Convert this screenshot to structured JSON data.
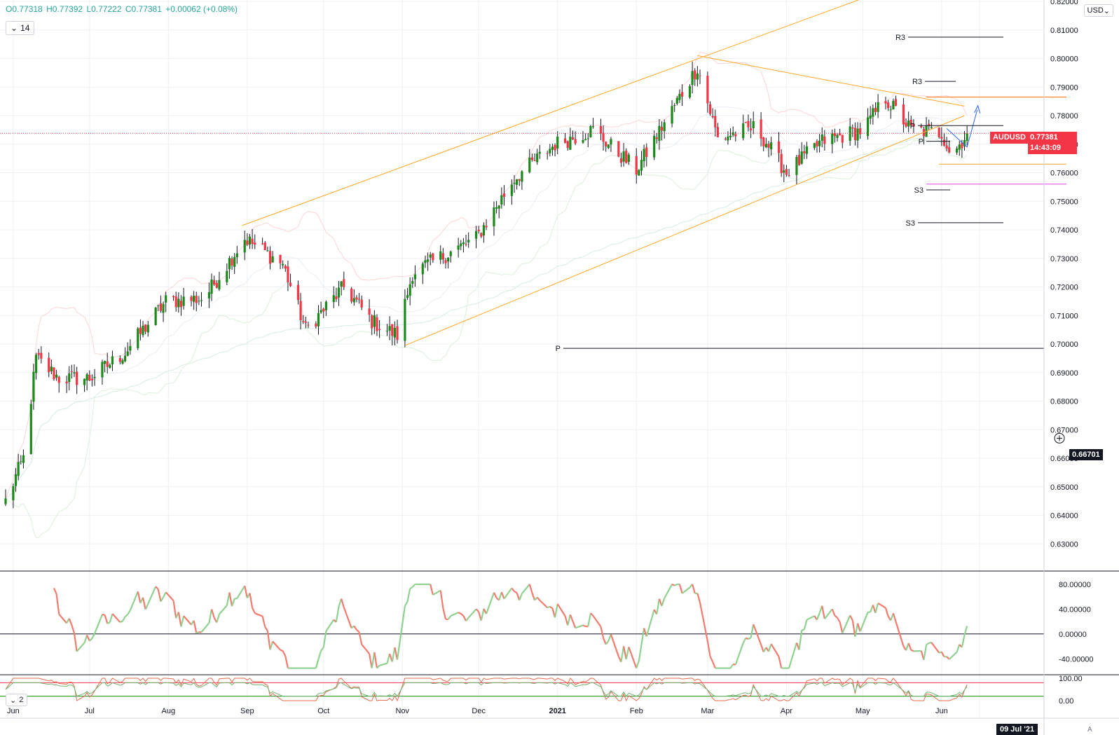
{
  "header": {
    "open": "O0.77318",
    "high": "H0.77392",
    "low": "L0.77222",
    "close": "C0.77381",
    "change": "+0.00062 (+0.08%)",
    "length_label": "14",
    "currency": "USD",
    "indicator2_label": "2"
  },
  "price_tag": {
    "symbol": "AUDUSD",
    "price": "0.77381",
    "countdown": "14:43:09"
  },
  "crosshair_price": "0.66701",
  "crosshair_date": "09 Jul '21",
  "auto_label": "A",
  "colors": {
    "up": "#1b8a1b",
    "down": "#f23645",
    "osc_up": "#8fd18f",
    "osc_down": "#f47a6e",
    "channel": "#ffa726"
  },
  "chart_data": {
    "type": "candlestick",
    "x_axis_labels": [
      "Jun",
      "Jul",
      "Aug",
      "Sep",
      "Oct",
      "Nov",
      "Dec",
      "2021",
      "Feb",
      "Mar",
      "Apr",
      "May",
      "Jun"
    ],
    "ylim": [
      0.62,
      0.82
    ],
    "y_ticks": [
      "0.82000",
      "0.81000",
      "0.80000",
      "0.79000",
      "0.78000",
      "0.77000",
      "0.76000",
      "0.75000",
      "0.74000",
      "0.73000",
      "0.72000",
      "0.71000",
      "0.70000",
      "0.69000",
      "0.68000",
      "0.67000",
      "0.66000",
      "0.65000",
      "0.64000",
      "0.63000"
    ],
    "close_path": [
      {
        "date": "2020-05-29",
        "close": 0.645
      },
      {
        "date": "2020-06-05",
        "close": 0.66
      },
      {
        "date": "2020-06-10",
        "close": 0.695
      },
      {
        "date": "2020-06-19",
        "close": 0.688
      },
      {
        "date": "2020-07-01",
        "close": 0.688
      },
      {
        "date": "2020-07-15",
        "close": 0.697
      },
      {
        "date": "2020-07-31",
        "close": 0.715
      },
      {
        "date": "2020-08-15",
        "close": 0.716
      },
      {
        "date": "2020-08-31",
        "close": 0.737
      },
      {
        "date": "2020-09-15",
        "close": 0.728
      },
      {
        "date": "2020-09-24",
        "close": 0.705
      },
      {
        "date": "2020-10-09",
        "close": 0.72
      },
      {
        "date": "2020-10-20",
        "close": 0.708
      },
      {
        "date": "2020-10-30",
        "close": 0.703
      },
      {
        "date": "2020-11-05",
        "close": 0.725
      },
      {
        "date": "2020-11-30",
        "close": 0.737
      },
      {
        "date": "2020-12-15",
        "close": 0.758
      },
      {
        "date": "2020-12-31",
        "close": 0.77
      },
      {
        "date": "2021-01-15",
        "close": 0.775
      },
      {
        "date": "2021-02-01",
        "close": 0.761
      },
      {
        "date": "2021-02-25",
        "close": 0.797
      },
      {
        "date": "2021-03-05",
        "close": 0.772
      },
      {
        "date": "2021-03-20",
        "close": 0.776
      },
      {
        "date": "2021-04-01",
        "close": 0.76
      },
      {
        "date": "2021-04-15",
        "close": 0.771
      },
      {
        "date": "2021-05-01",
        "close": 0.775
      },
      {
        "date": "2021-05-10",
        "close": 0.786
      },
      {
        "date": "2021-05-20",
        "close": 0.775
      },
      {
        "date": "2021-06-01",
        "close": 0.774
      },
      {
        "date": "2021-06-05",
        "close": 0.766
      },
      {
        "date": "2021-06-11",
        "close": 0.77381
      }
    ],
    "pivot_labels": [
      "R3",
      "R3",
      "P",
      "P",
      "P",
      "S3",
      "S3"
    ],
    "oscillator_1": {
      "y_ticks": [
        "80.00000",
        "40.00000",
        "0.00000",
        "-40.00000"
      ],
      "ylim": [
        -60,
        90
      ]
    },
    "oscillator_2": {
      "y_ticks": [
        "100.00",
        "0.00"
      ],
      "ylim": [
        0,
        100
      ]
    }
  }
}
